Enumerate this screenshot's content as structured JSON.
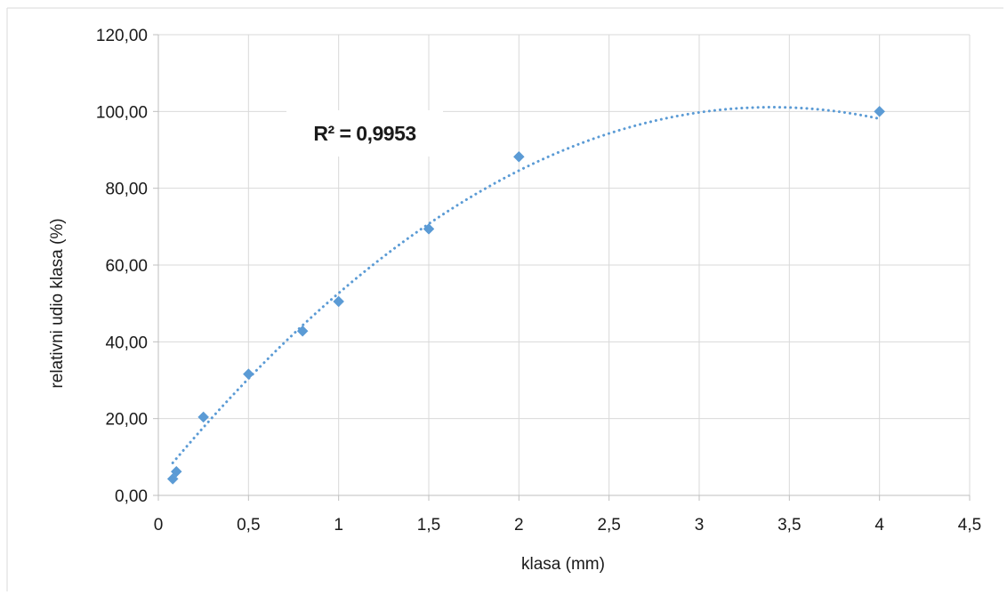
{
  "chart_data": {
    "type": "scatter",
    "xlabel": "klasa (mm)",
    "ylabel": "relativni udio klasa (%)",
    "xlim": [
      0,
      4.5
    ],
    "ylim": [
      0,
      120
    ],
    "x_ticks": [
      "0",
      "0,5",
      "1",
      "1,5",
      "2",
      "2,5",
      "3",
      "3,5",
      "4",
      "4,5"
    ],
    "y_ticks": [
      "0,00",
      "20,00",
      "40,00",
      "60,00",
      "80,00",
      "100,00",
      "120,00"
    ],
    "grid": true,
    "legend": "none",
    "series": [
      {
        "x": [
          0.08,
          0.1,
          0.25,
          0.5,
          0.8,
          1.0,
          1.5,
          2.0,
          4.0
        ],
        "y": [
          4.3,
          6.2,
          20.4,
          31.6,
          42.8,
          50.5,
          69.4,
          88.2,
          100.0
        ],
        "marker": "diamond",
        "color": "#5b9bd5"
      }
    ],
    "trendline": {
      "kind": "polynomial",
      "style": "dotted",
      "color": "#5b9bd5",
      "coefficients": [
        3.96,
        57.1,
        -8.39
      ],
      "x_range": [
        0.08,
        4.0
      ]
    },
    "annotation": {
      "text": "R² = 0,9953"
    }
  }
}
